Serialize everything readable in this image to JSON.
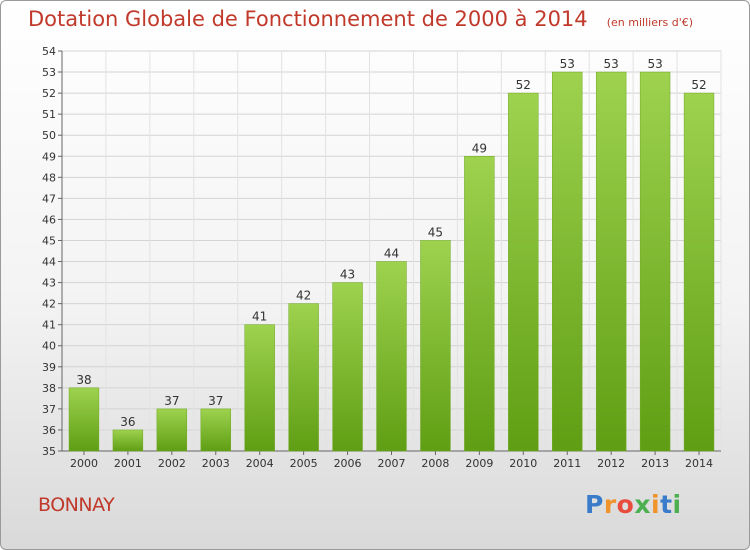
{
  "title": "Dotation Globale de Fonctionnement de 2000 à 2014",
  "subtitle": "(en milliers d'€)",
  "commune": "BONNAY",
  "logo_text": "Proxiti",
  "colors": {
    "title": "#c0392b",
    "bar_top": "#9ed24f",
    "bar_bottom": "#5f9e14",
    "bar_edge": "#6da91f"
  },
  "chart_data": {
    "type": "bar",
    "title": "Dotation Globale de Fonctionnement de 2000 à 2014",
    "subtitle": "(en milliers d'€)",
    "categories": [
      "2000",
      "2001",
      "2002",
      "2003",
      "2004",
      "2005",
      "2006",
      "2007",
      "2008",
      "2009",
      "2010",
      "2011",
      "2012",
      "2013",
      "2014"
    ],
    "values": [
      38,
      36,
      37,
      37,
      41,
      42,
      43,
      44,
      45,
      49,
      52,
      53,
      53,
      53,
      52
    ],
    "ylim": [
      35,
      54
    ],
    "yticks": [
      35,
      36,
      37,
      38,
      39,
      40,
      41,
      42,
      43,
      44,
      45,
      46,
      47,
      48,
      49,
      50,
      51,
      52,
      53,
      54
    ],
    "grid": true,
    "legend": "none"
  }
}
